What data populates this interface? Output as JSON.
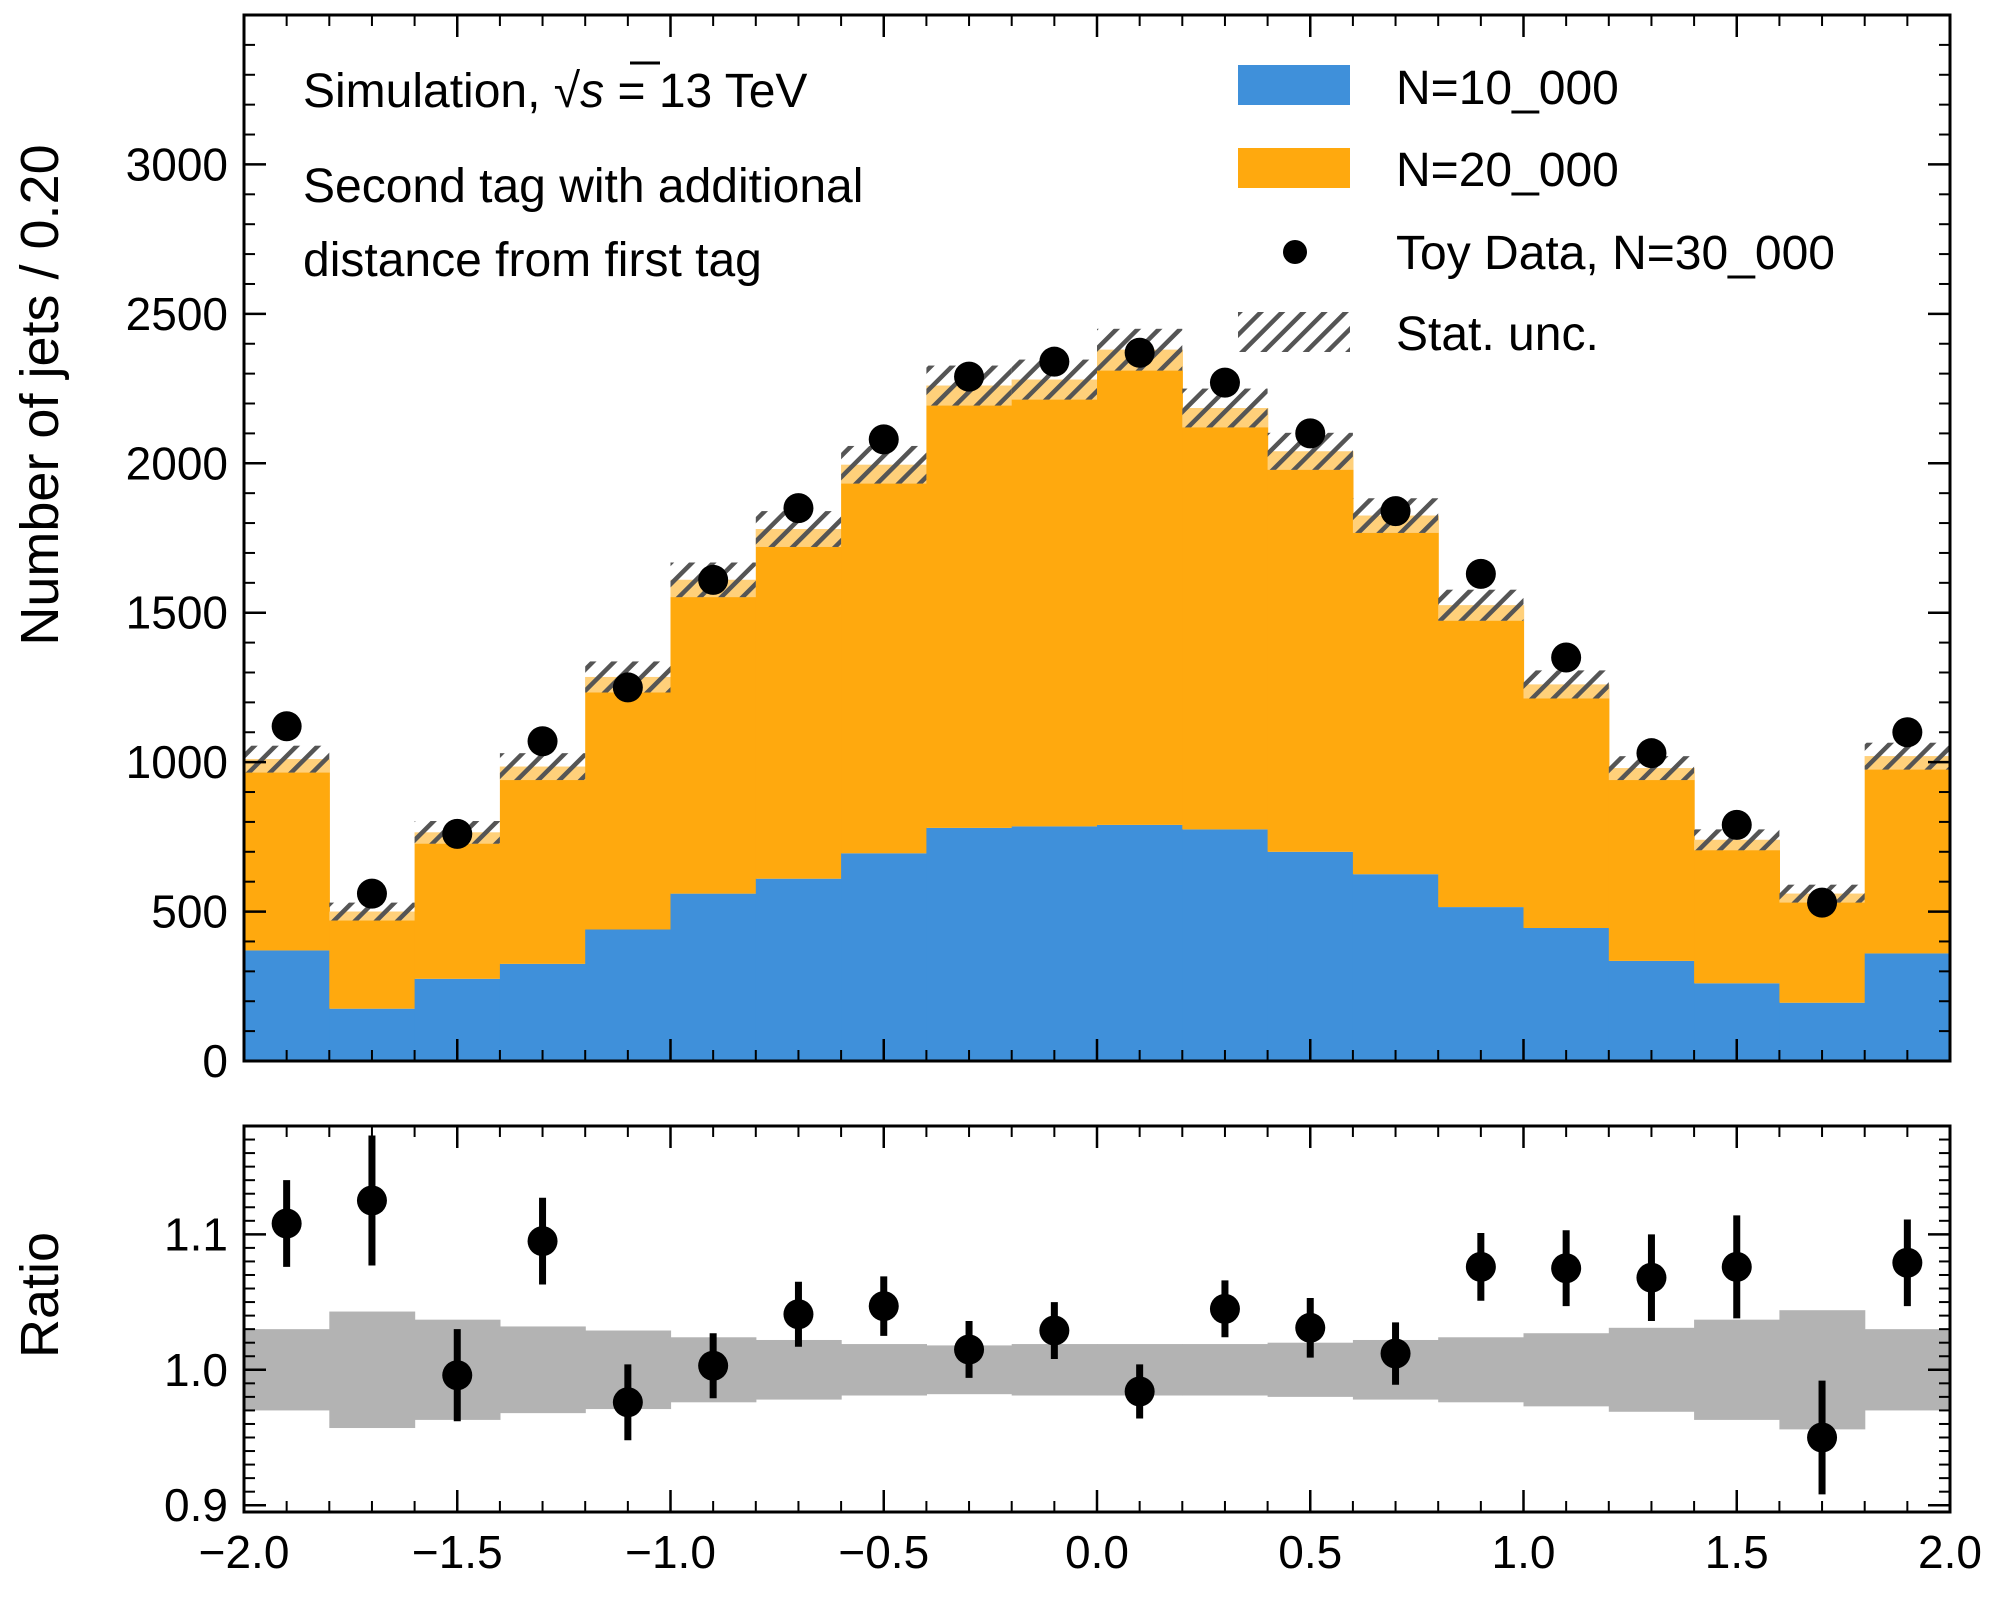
{
  "chart_data": [
    {
      "type": "bar",
      "subtype": "stacked-histogram",
      "bin_edges": [
        -2.0,
        -1.8,
        -1.6,
        -1.4,
        -1.2,
        -1.0,
        -0.8,
        -0.6,
        -0.4,
        -0.2,
        0.0,
        0.2,
        0.4,
        0.6,
        0.8,
        1.0,
        1.2,
        1.4,
        1.6,
        1.8,
        2.0
      ],
      "bin_centers": [
        -1.9,
        -1.7,
        -1.5,
        -1.3,
        -1.1,
        -0.9,
        -0.7,
        -0.5,
        -0.3,
        -0.1,
        0.1,
        0.3,
        0.5,
        0.7,
        0.9,
        1.1,
        1.3,
        1.5,
        1.7,
        1.9
      ],
      "series": [
        {
          "name": "N=10_000",
          "color": "#3f90da",
          "values": [
            370,
            175,
            275,
            325,
            440,
            560,
            610,
            695,
            780,
            785,
            790,
            775,
            700,
            625,
            515,
            445,
            335,
            260,
            195,
            360
          ]
        },
        {
          "name": "N=20_000",
          "color": "#ffa90e",
          "values": [
            640,
            325,
            490,
            660,
            845,
            1050,
            1170,
            1300,
            1480,
            1495,
            1590,
            1410,
            1340,
            1200,
            1010,
            815,
            645,
            480,
            365,
            660
          ]
        }
      ],
      "stat_unc": [
        45,
        30,
        38,
        45,
        52,
        58,
        60,
        63,
        67,
        67,
        70,
        65,
        62,
        58,
        52,
        47,
        40,
        35,
        30,
        45
      ],
      "data": {
        "name": "Toy Data, N=30_000",
        "values": [
          1120,
          560,
          760,
          1070,
          1250,
          1610,
          1850,
          2080,
          2290,
          2340,
          2370,
          2270,
          2100,
          1840,
          1630,
          1350,
          1030,
          790,
          530,
          1100
        ]
      },
      "ylabel": "Number of jets / 0.20",
      "ylim": [
        0,
        3500
      ],
      "yticks": [
        "0",
        "500",
        "1000",
        "1500",
        "2000",
        "2500",
        "3000"
      ],
      "legend": {
        "placement": "upper-right",
        "entries": [
          "N=10_000",
          "N=20_000",
          "Toy Data, N=30_000",
          "Stat. unc."
        ]
      },
      "annotations": {
        "line1_prefix": "Simulation, ",
        "sqrt_s": "s",
        "line1_suffix": " = 13 TeV",
        "line2": "Second tag with additional",
        "line3": "distance from first tag"
      }
    },
    {
      "type": "scatter",
      "subtype": "ratio",
      "x": [
        -1.9,
        -1.7,
        -1.5,
        -1.3,
        -1.1,
        -0.9,
        -0.7,
        -0.5,
        -0.3,
        -0.1,
        0.1,
        0.3,
        0.5,
        0.7,
        0.9,
        1.1,
        1.3,
        1.5,
        1.7,
        1.9
      ],
      "y": [
        1.108,
        1.125,
        0.996,
        1.095,
        0.976,
        1.003,
        1.041,
        1.047,
        1.015,
        1.029,
        0.984,
        1.045,
        1.031,
        1.012,
        1.076,
        1.075,
        1.068,
        1.076,
        0.95,
        1.079
      ],
      "yerr": [
        0.032,
        0.048,
        0.034,
        0.032,
        0.028,
        0.024,
        0.024,
        0.022,
        0.021,
        0.021,
        0.02,
        0.021,
        0.022,
        0.023,
        0.025,
        0.028,
        0.032,
        0.038,
        0.042,
        0.032
      ],
      "band": [
        0.03,
        0.043,
        0.037,
        0.032,
        0.029,
        0.024,
        0.022,
        0.019,
        0.018,
        0.019,
        0.019,
        0.019,
        0.02,
        0.022,
        0.024,
        0.027,
        0.031,
        0.037,
        0.044,
        0.03
      ],
      "ylabel": "Ratio",
      "ylim": [
        0.895,
        1.18
      ],
      "yticks": [
        "0.9",
        "1.0",
        "1.1"
      ],
      "xlim": [
        -2.0,
        2.0
      ],
      "xticks": [
        "−2.0",
        "−1.5",
        "−1.0",
        "−0.5",
        "0.0",
        "0.5",
        "1.0",
        "1.5",
        "2.0"
      ]
    }
  ]
}
